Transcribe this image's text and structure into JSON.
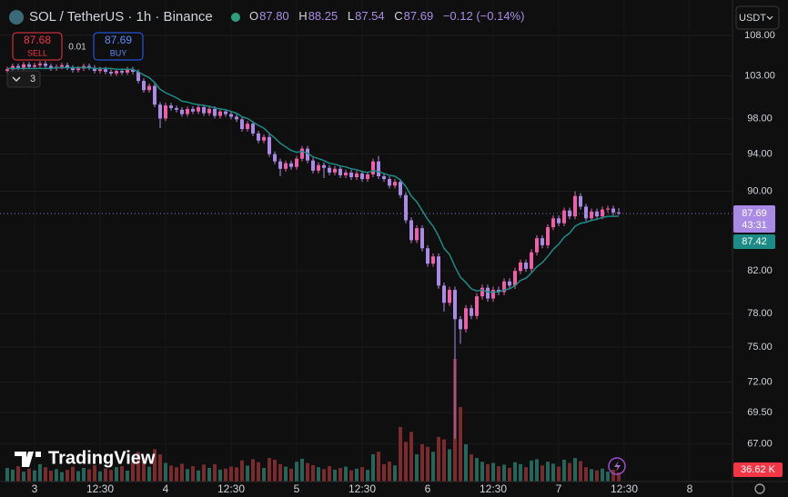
{
  "ui": {
    "symbol": "SOL / TetherUS · 1h · Binance",
    "o": "O",
    "open": "87.80",
    "h": "H",
    "high": "88.25",
    "l": "L",
    "low": "87.54",
    "c": "C",
    "close": "87.69",
    "change": "−0.12 (−0.14%)",
    "sell_price": "87.68",
    "sell": "SELL",
    "spread": "0.01",
    "buy_price": "87.69",
    "buy": "BUY",
    "indicators_count": "3",
    "currency": "USDT",
    "countdown": "43:31",
    "brand": "TradingView"
  },
  "chart_data": {
    "type": "candlestick",
    "log_scale": true,
    "grid": true,
    "up_color": "#ef5fa7",
    "down_color": "#a98be6",
    "ma_color": "#1e8c86",
    "volume_up_color": "#24665a",
    "volume_down_color": "#7a2b2e",
    "ylim": [
      64.1,
      112.56
    ],
    "yticks": [
      {
        "value": 108,
        "label": "108.00"
      },
      {
        "value": 103,
        "label": "103.00"
      },
      {
        "value": 98,
        "label": "98.00"
      },
      {
        "value": 94,
        "label": "94.00"
      },
      {
        "value": 90,
        "label": "90.00"
      },
      {
        "value": 82,
        "label": "82.00"
      },
      {
        "value": 78,
        "label": "78.00"
      },
      {
        "value": 75,
        "label": "75.00"
      },
      {
        "value": 72,
        "label": "72.00"
      },
      {
        "value": 69.5,
        "label": "69.50"
      },
      {
        "value": 67,
        "label": "67.00"
      }
    ],
    "xlim": [
      -1.33,
      132.83
    ],
    "xticks": [
      {
        "value": 5,
        "label": "3"
      },
      {
        "value": 17,
        "label": "12:30"
      },
      {
        "value": 29,
        "label": "4"
      },
      {
        "value": 41,
        "label": "12:30"
      },
      {
        "value": 53,
        "label": "5"
      },
      {
        "value": 65,
        "label": "12:30"
      },
      {
        "value": 77,
        "label": "6"
      },
      {
        "value": 89,
        "label": "12:30"
      },
      {
        "value": 101,
        "label": "7"
      },
      {
        "value": 113,
        "label": "12:30"
      },
      {
        "value": 125,
        "label": "8"
      }
    ],
    "open": [
      103.6,
      103.8,
      104.2,
      104.0,
      104.4,
      104.1,
      104.3,
      104.5,
      104.2,
      103.9,
      104.1,
      104.3,
      104.0,
      103.7,
      103.9,
      104.2,
      104.0,
      103.6,
      103.8,
      103.5,
      103.3,
      103.6,
      103.4,
      103.8,
      103.5,
      102.4,
      101.3,
      101.8,
      99.6,
      98.0,
      99.5,
      99.2,
      99.0,
      98.5,
      99.1,
      98.8,
      99.3,
      98.6,
      99.1,
      98.3,
      98.8,
      98.5,
      98.2,
      97.9,
      96.8,
      97.4,
      96.3,
      95.5,
      95.9,
      94.0,
      93.2,
      92.4,
      93.0,
      92.6,
      93.5,
      94.6,
      93.3,
      92.2,
      92.8,
      92.5,
      92.0,
      92.4,
      91.7,
      92.0,
      91.5,
      91.9,
      91.3,
      91.8,
      93.2,
      91.6,
      91.3,
      90.6,
      91.0,
      89.6,
      87.0,
      85.0,
      86.2,
      84.2,
      82.7,
      83.4,
      80.6,
      79.0,
      80.2,
      77.5,
      76.6,
      78.5,
      77.8,
      79.6,
      80.4,
      79.4,
      80.2,
      80.0,
      81.0,
      80.6,
      82.0,
      82.8,
      82.2,
      83.8,
      85.2,
      84.5,
      86.3,
      87.2,
      86.7,
      88.0,
      87.4,
      89.5,
      88.4,
      87.2,
      87.9,
      87.4,
      88.1,
      88.2,
      87.8
    ],
    "high": [
      104.1,
      104.5,
      104.5,
      104.7,
      104.7,
      104.6,
      104.8,
      104.8,
      104.5,
      104.4,
      104.6,
      104.6,
      104.3,
      104.2,
      104.5,
      104.5,
      104.3,
      104.1,
      104.1,
      103.8,
      103.9,
      103.9,
      104.1,
      104.1,
      103.8,
      102.7,
      102.1,
      102.1,
      99.9,
      99.8,
      99.8,
      99.5,
      99.3,
      99.4,
      99.4,
      99.6,
      99.6,
      99.4,
      99.4,
      99.1,
      99.1,
      98.8,
      98.5,
      98.2,
      97.7,
      97.7,
      96.6,
      96.2,
      96.2,
      94.3,
      93.5,
      93.3,
      93.3,
      93.8,
      94.9,
      94.9,
      93.6,
      93.1,
      93.1,
      92.8,
      92.7,
      92.7,
      92.3,
      92.3,
      92.2,
      92.2,
      92.1,
      93.5,
      93.8,
      91.9,
      91.6,
      91.3,
      91.3,
      89.9,
      87.3,
      86.5,
      86.5,
      84.5,
      83.7,
      83.7,
      80.9,
      80.5,
      80.5,
      77.8,
      78.8,
      78.8,
      79.9,
      80.7,
      80.7,
      80.5,
      80.5,
      81.3,
      81.3,
      82.3,
      83.1,
      83.1,
      84.1,
      85.5,
      85.5,
      86.6,
      87.5,
      87.5,
      88.3,
      88.3,
      90.0,
      89.8,
      88.7,
      88.2,
      88.2,
      88.4,
      88.5,
      88.5,
      88.25
    ],
    "low": [
      103.3,
      103.5,
      103.7,
      103.7,
      103.8,
      103.8,
      104.0,
      103.9,
      103.6,
      103.6,
      103.8,
      103.7,
      103.4,
      103.4,
      103.6,
      103.7,
      103.3,
      103.3,
      103.2,
      103.0,
      103.0,
      103.1,
      103.1,
      103.2,
      102.1,
      101.0,
      101.0,
      99.3,
      96.9,
      97.7,
      98.9,
      98.7,
      98.2,
      98.2,
      98.5,
      98.5,
      98.3,
      98.3,
      98.0,
      98.0,
      98.2,
      97.9,
      97.6,
      96.5,
      96.5,
      96.0,
      95.2,
      95.2,
      93.7,
      92.9,
      91.6,
      92.1,
      92.3,
      92.3,
      93.2,
      93.0,
      91.9,
      91.9,
      91.4,
      91.7,
      91.7,
      91.4,
      91.4,
      91.2,
      91.2,
      91.0,
      91.0,
      91.5,
      91.3,
      91.0,
      90.3,
      90.3,
      89.3,
      86.7,
      84.7,
      84.7,
      83.9,
      82.4,
      82.4,
      80.3,
      78.2,
      78.7,
      67.4,
      75.3,
      76.3,
      77.5,
      77.5,
      79.3,
      79.1,
      79.1,
      79.7,
      79.7,
      80.3,
      80.3,
      81.7,
      81.9,
      81.9,
      83.5,
      84.2,
      84.2,
      86.0,
      86.4,
      86.4,
      87.1,
      87.1,
      88.1,
      86.9,
      86.9,
      87.1,
      87.1,
      87.8,
      87.5,
      87.54
    ],
    "close": [
      103.8,
      104.2,
      104.0,
      104.4,
      104.1,
      104.3,
      104.5,
      104.2,
      103.9,
      104.1,
      104.3,
      104.0,
      103.7,
      103.9,
      104.2,
      104.0,
      103.6,
      103.8,
      103.5,
      103.3,
      103.6,
      103.4,
      103.8,
      103.5,
      102.4,
      101.3,
      101.8,
      99.6,
      98.0,
      99.5,
      99.2,
      99.0,
      98.5,
      99.1,
      98.8,
      99.3,
      98.6,
      99.1,
      98.3,
      98.8,
      98.5,
      98.2,
      97.9,
      96.8,
      97.4,
      96.3,
      95.5,
      95.9,
      94.0,
      93.2,
      92.4,
      93.0,
      92.6,
      93.5,
      94.6,
      93.3,
      92.2,
      92.8,
      92.5,
      92.0,
      92.4,
      91.7,
      92.0,
      91.5,
      91.9,
      91.3,
      91.8,
      93.2,
      91.6,
      91.3,
      90.6,
      91.0,
      89.6,
      87.0,
      85.0,
      86.2,
      84.2,
      82.7,
      83.4,
      80.6,
      79.0,
      80.2,
      77.5,
      76.6,
      78.5,
      77.8,
      79.6,
      80.4,
      79.4,
      80.2,
      80.0,
      81.0,
      80.6,
      82.0,
      82.8,
      82.2,
      83.8,
      85.2,
      84.5,
      86.3,
      87.2,
      86.7,
      88.0,
      87.4,
      89.5,
      88.4,
      87.2,
      87.9,
      87.4,
      88.1,
      88.2,
      87.8,
      87.69
    ],
    "ma": [
      103.9,
      103.9,
      103.9,
      103.9,
      103.9,
      103.9,
      103.9,
      103.9,
      103.9,
      104.0,
      104.0,
      104.0,
      104.0,
      104.0,
      104.0,
      104.0,
      103.9,
      103.9,
      103.9,
      103.9,
      103.8,
      103.8,
      103.8,
      103.8,
      103.5,
      103.1,
      102.8,
      102.2,
      101.4,
      101.0,
      100.7,
      100.4,
      100.0,
      99.9,
      99.7,
      99.6,
      99.5,
      99.4,
      99.2,
      99.1,
      99.0,
      98.8,
      98.6,
      98.2,
      98.0,
      97.6,
      97.2,
      96.9,
      96.3,
      95.8,
      95.2,
      94.8,
      94.4,
      94.2,
      94.3,
      94.1,
      93.7,
      93.5,
      93.3,
      93.0,
      92.9,
      92.7,
      92.6,
      92.4,
      92.3,
      92.1,
      92.0,
      92.2,
      92.1,
      91.9,
      91.7,
      91.6,
      91.2,
      90.5,
      89.5,
      88.9,
      88.0,
      87.1,
      86.4,
      85.4,
      84.2,
      83.6,
      82.4,
      81.4,
      80.9,
      80.3,
      80.1,
      80.2,
      80.0,
      80.0,
      80.0,
      80.2,
      80.3,
      80.6,
      81.1,
      81.3,
      81.8,
      82.4,
      82.8,
      83.4,
      84.1,
      84.6,
      85.3,
      85.7,
      86.4,
      86.7,
      86.8,
      87.0,
      87.1,
      87.3,
      87.4,
      87.4,
      87.42
    ],
    "vlim": [
      0,
      1940
    ],
    "volume": [
      55,
      48,
      62,
      40,
      52,
      45,
      70,
      58,
      44,
      50,
      38,
      47,
      60,
      42,
      55,
      49,
      66,
      41,
      53,
      47,
      58,
      62,
      44,
      80,
      120,
      95,
      60,
      130,
      110,
      75,
      65,
      58,
      72,
      50,
      62,
      45,
      68,
      55,
      70,
      48,
      52,
      60,
      57,
      85,
      64,
      90,
      78,
      55,
      95,
      88,
      70,
      60,
      52,
      80,
      92,
      75,
      66,
      58,
      50,
      62,
      48,
      55,
      60,
      45,
      52,
      58,
      47,
      110,
      120,
      70,
      80,
      65,
      220,
      160,
      200,
      110,
      150,
      140,
      120,
      180,
      170,
      130,
      494,
      300,
      150,
      110,
      95,
      80,
      70,
      75,
      62,
      68,
      55,
      78,
      70,
      58,
      85,
      90,
      65,
      80,
      72,
      60,
      88,
      75,
      95,
      82,
      58,
      50,
      45,
      52,
      40,
      48,
      36.62
    ],
    "volume_last_label": "36.62 K"
  }
}
